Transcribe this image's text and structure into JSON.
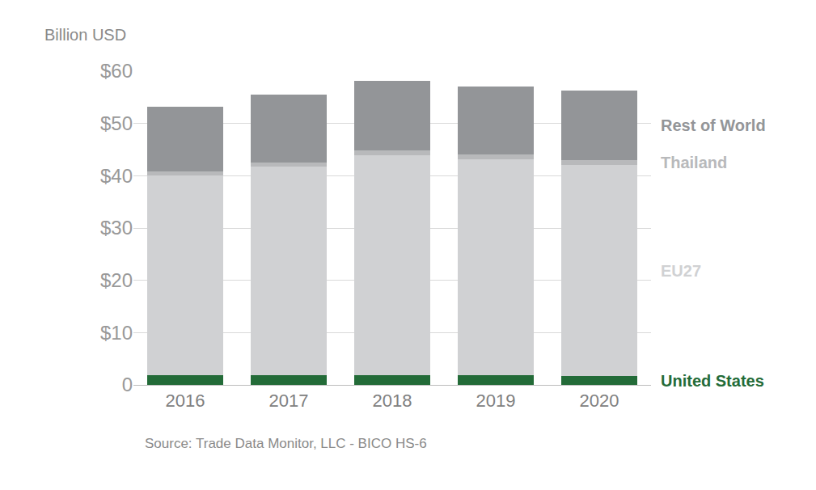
{
  "chart_data": {
    "type": "bar",
    "stacked": true,
    "grid": true,
    "ylabel": "Billion USD",
    "source": "Source: Trade Data Monitor, LLC - BICO HS-6",
    "categories": [
      "2016",
      "2017",
      "2018",
      "2019",
      "2020"
    ],
    "series": [
      {
        "name": "United States",
        "color": "#236b38",
        "values": [
          1.9,
          1.9,
          1.9,
          1.8,
          1.7
        ]
      },
      {
        "name": "EU27",
        "color": "#d0d1d3",
        "values": [
          38.1,
          39.8,
          42.0,
          41.3,
          40.3
        ]
      },
      {
        "name": "Thailand",
        "color": "#b8b9bb",
        "values": [
          0.8,
          0.8,
          0.9,
          0.9,
          1.0
        ]
      },
      {
        "name": "Rest of World",
        "color": "#939598",
        "values": [
          12.4,
          13.0,
          13.4,
          13.1,
          13.3
        ]
      }
    ],
    "ylim": [
      0,
      60
    ],
    "yticks": [
      0,
      {
        "value": 10,
        "label": "$10"
      },
      {
        "value": 20,
        "label": "$20"
      },
      {
        "value": 30,
        "label": "$30"
      },
      {
        "value": 40,
        "label": "$40"
      },
      {
        "value": 50,
        "label": "$50"
      },
      {
        "value": 60,
        "label": "$60"
      }
    ]
  }
}
